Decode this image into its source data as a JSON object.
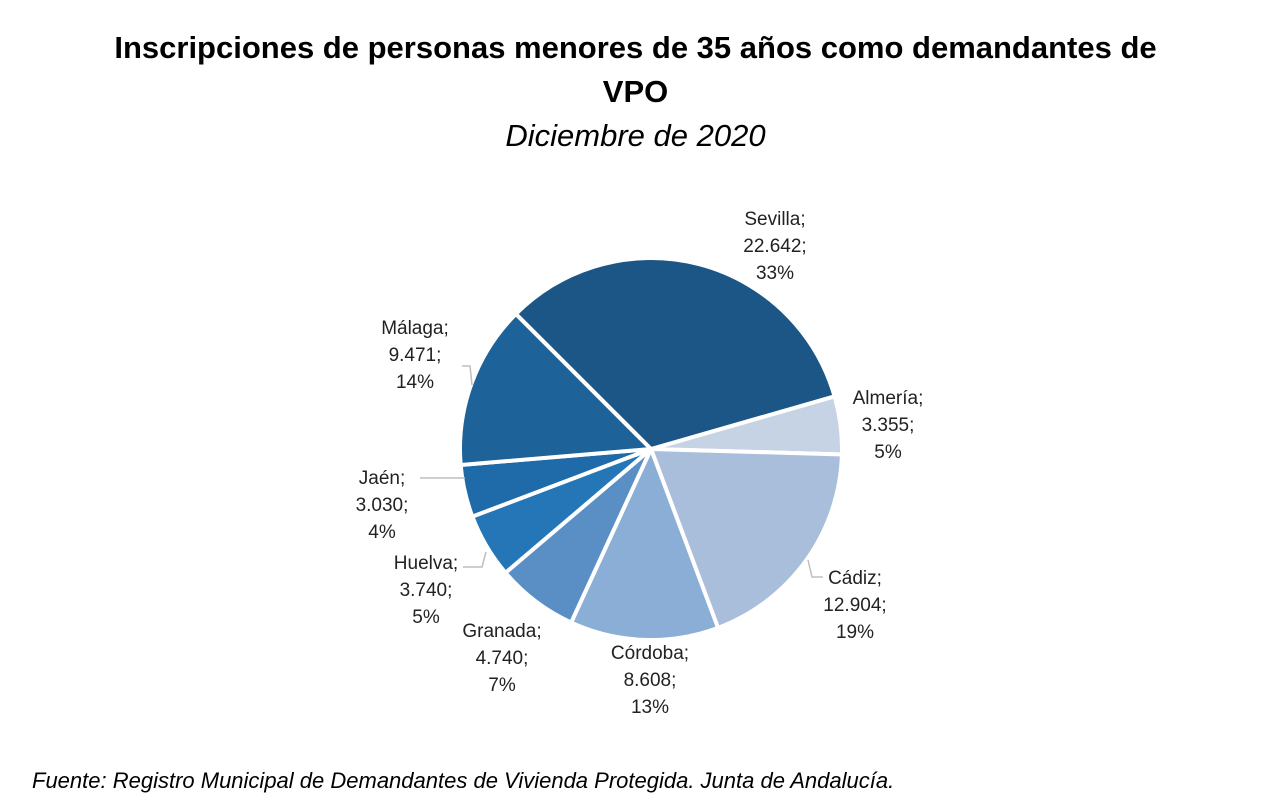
{
  "chart_data": {
    "type": "pie",
    "title": "Inscripciones de personas menores de 35 años como demandantes de VPO",
    "title_lines": [
      "Inscripciones de personas menores de 35 años como demandantes de",
      "VPO"
    ],
    "subtitle": "Diciembre de 2020",
    "slices": [
      {
        "name": "Almería",
        "value": 3355,
        "value_label": "3.355;",
        "name_label": "Almería;",
        "pct_label": "5%",
        "color": "#c6d3e5"
      },
      {
        "name": "Cádiz",
        "value": 12904,
        "value_label": "12.904;",
        "name_label": "Cádiz;",
        "pct_label": "19%",
        "color": "#a9bedb"
      },
      {
        "name": "Córdoba",
        "value": 8608,
        "value_label": "8.608;",
        "name_label": "Córdoba;",
        "pct_label": "13%",
        "color": "#8aaed6"
      },
      {
        "name": "Granada",
        "value": 4740,
        "value_label": "4.740;",
        "name_label": "Granada;",
        "pct_label": "7%",
        "color": "#5a8fc6"
      },
      {
        "name": "Huelva",
        "value": 3740,
        "value_label": "3.740;",
        "name_label": "Huelva;",
        "pct_label": "5%",
        "color": "#2476b7"
      },
      {
        "name": "Jaén",
        "value": 3030,
        "value_label": "3.030;",
        "name_label": "Jaén;",
        "pct_label": "4%",
        "color": "#1f6aa8"
      },
      {
        "name": "Málaga",
        "value": 9471,
        "value_label": "9.471;",
        "name_label": "Málaga;",
        "pct_label": "14%",
        "color": "#1d6399"
      },
      {
        "name": "Sevilla",
        "value": 22642,
        "value_label": "22.642;",
        "name_label": "Sevilla;",
        "pct_label": "33%",
        "color": "#1b5686"
      }
    ],
    "start_angle_deg": 74,
    "legend": "none"
  },
  "source": "Fuente: Registro Municipal de Demandantes de Vivienda Protegida. Junta de Andalucía."
}
